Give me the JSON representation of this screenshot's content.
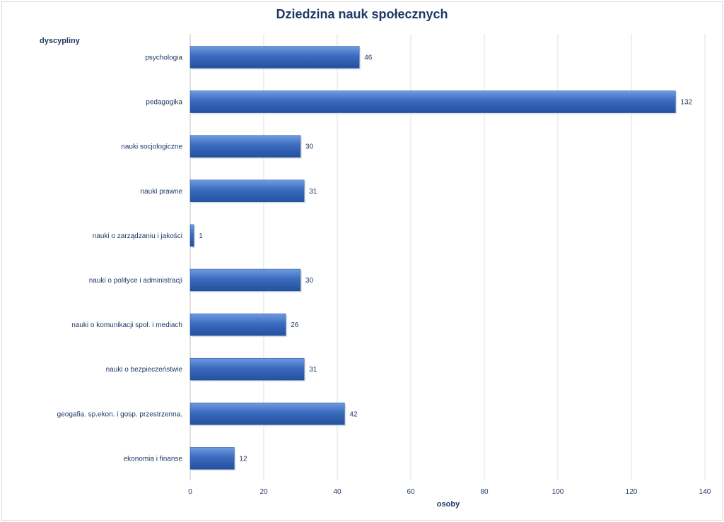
{
  "chart_data": {
    "type": "bar",
    "orientation": "horizontal",
    "title": "Dziedzina nauk społecznych",
    "ylabel": "dyscypliny",
    "xlabel": "osoby",
    "categories": [
      "psychologia",
      "pedagogika",
      "nauki socjologiczne",
      "nauki prawne",
      "nauki o zarządzaniu i jakości",
      "nauki o polityce  i administracji",
      "nauki o komunikacji  społ. i mediach",
      "nauki o bezpieczeństwie",
      "geogafia. sp.ekon. i gosp. przestrzenna.",
      "ekonomia i finanse"
    ],
    "values": [
      46,
      132,
      30,
      31,
      1,
      30,
      26,
      31,
      42,
      12
    ],
    "xlim": [
      0,
      140
    ],
    "xticks": [
      0,
      20,
      40,
      60,
      80,
      100,
      120,
      140
    ],
    "grid": "vertical",
    "legend": "none",
    "colors": {
      "bar": "#3b6bbf",
      "bar_light": "#5a8ad6",
      "bar_dark": "#24519e",
      "text": "#1f3864",
      "grid": "#d9e1ec"
    }
  }
}
